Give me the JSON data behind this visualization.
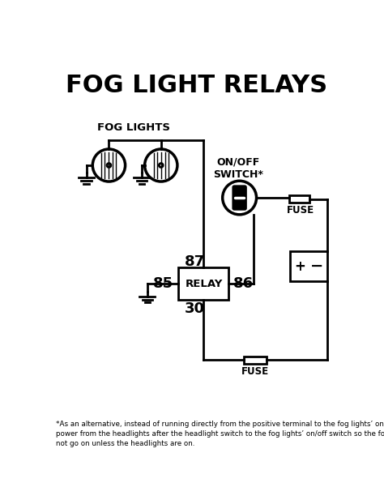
{
  "title": "FOG LIGHT RELAYS",
  "footnote": "*As an alternative, instead of running directly from the positive terminal to the fog lights’ on/off switch, run\npower from the headlights after the headlight switch to the fog lights’ on/off switch so the fog lights will\nnot go on unless the headlights are on.",
  "fog_lights_label": "FOG LIGHTS",
  "switch_label": "ON/OFF\nSWITCH*",
  "fuse_top_label": "FUSE",
  "fuse_bot_label": "FUSE",
  "relay_label": "RELAY",
  "pin_87": "87",
  "pin_85": "85",
  "pin_86": "86",
  "pin_30": "30",
  "bg_color": "#ffffff",
  "line_color": "#000000",
  "text_color": "#000000",
  "title_fontsize": 22,
  "label_fontsize": 9,
  "pin_fontsize": 13,
  "footnote_fontsize": 6.3,
  "lw": 2.0
}
